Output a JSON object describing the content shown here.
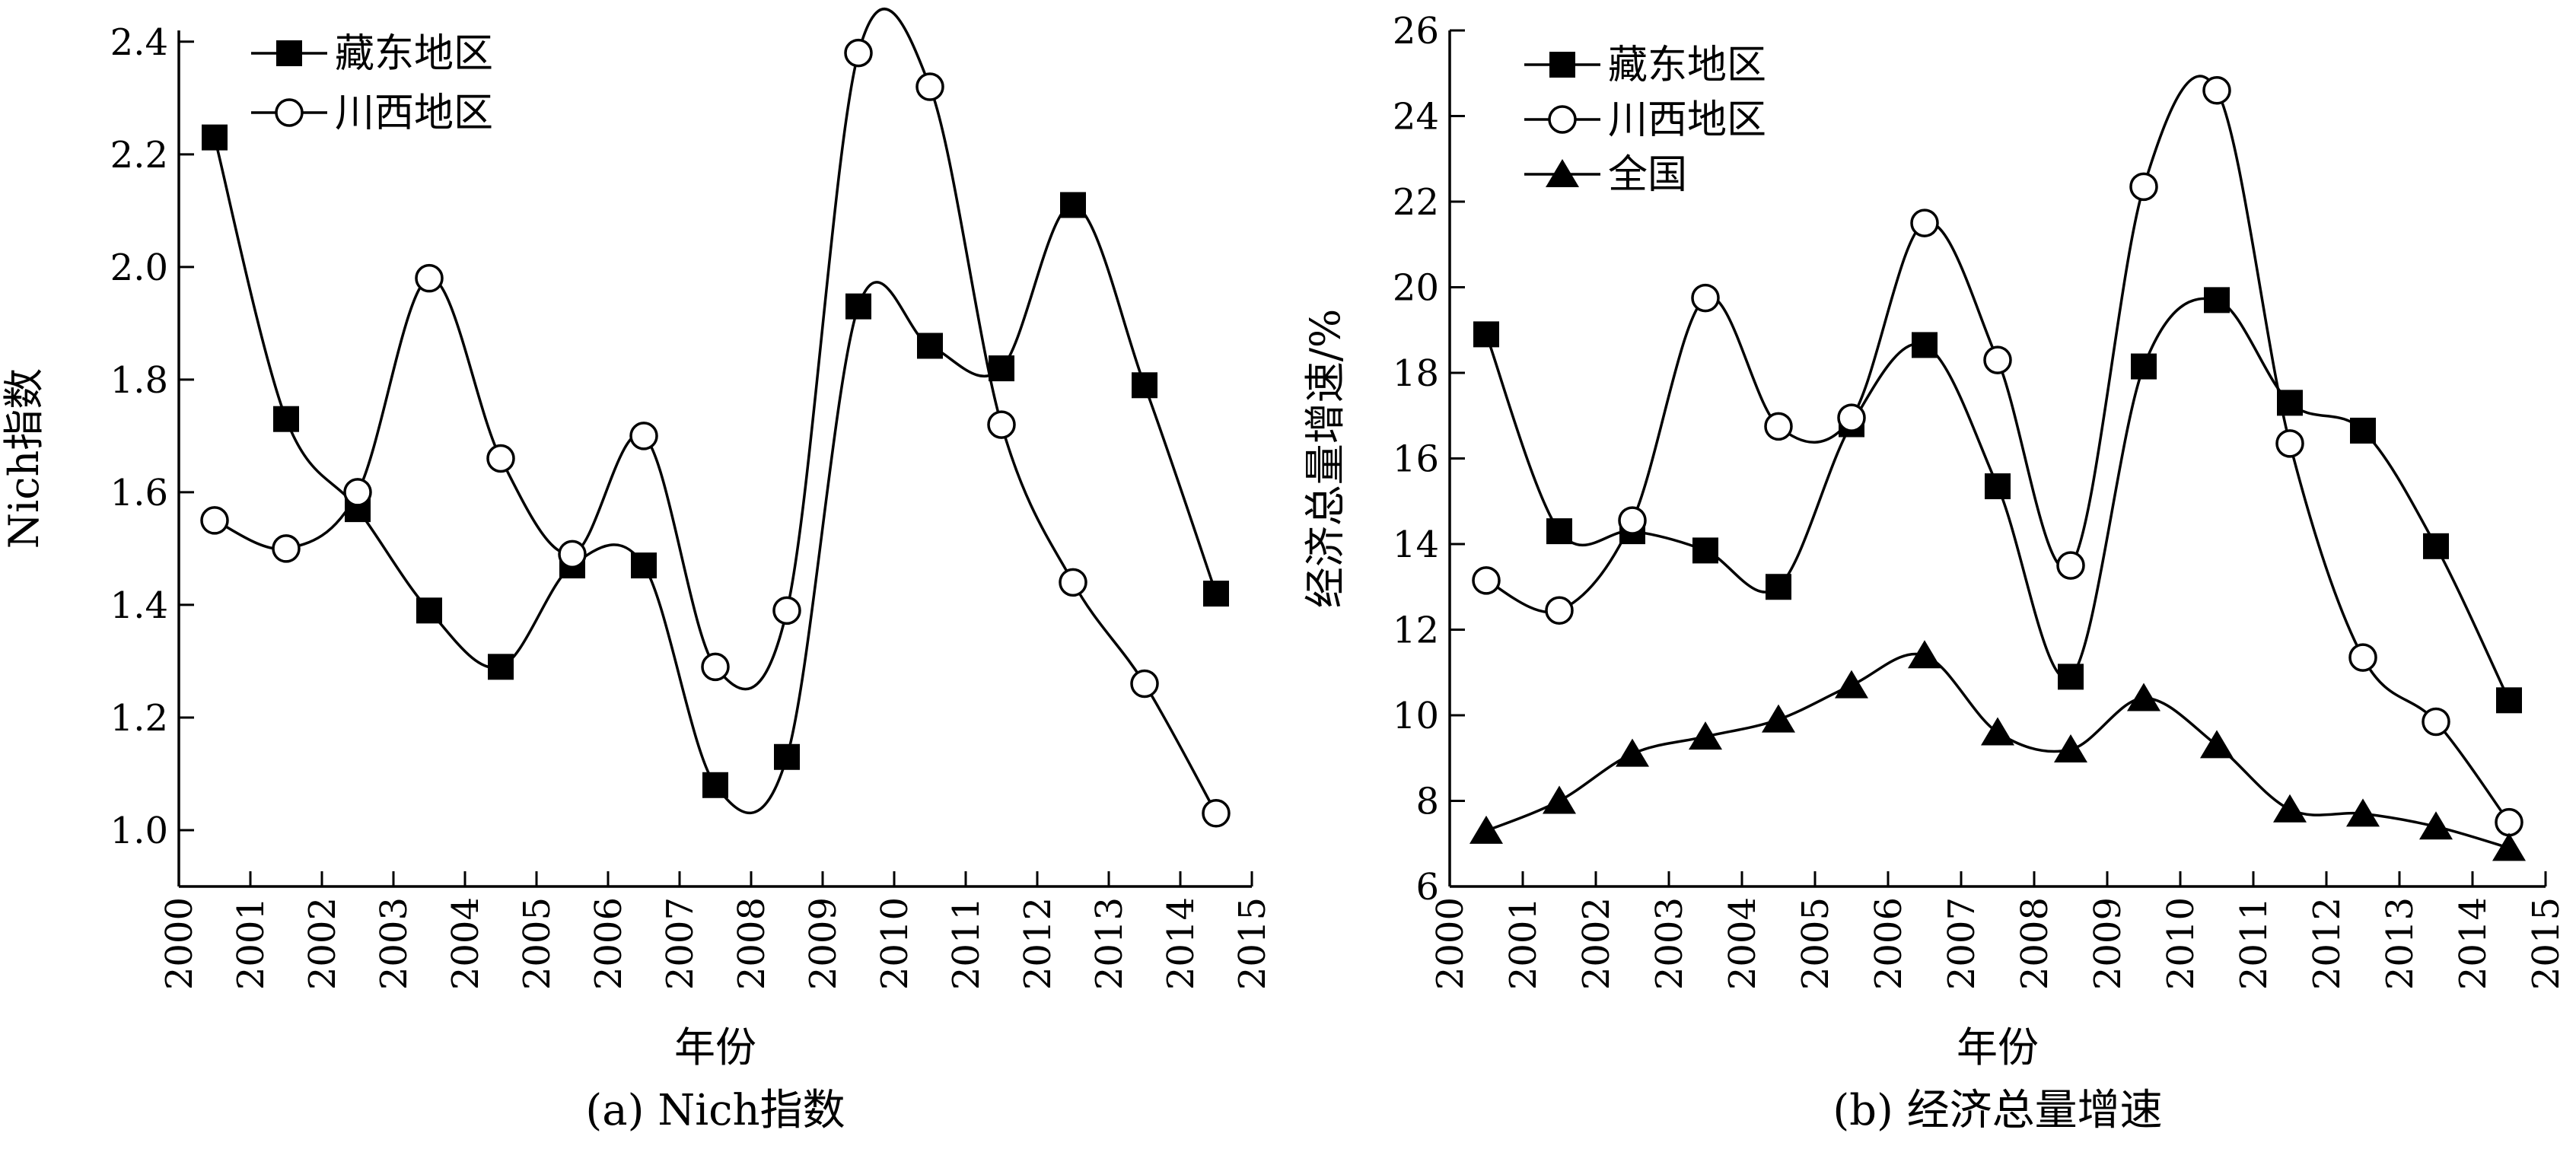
{
  "chart_data": [
    {
      "type": "line",
      "caption": "(a) Nich指数",
      "xlabel": "年份",
      "ylabel": "Nich指数",
      "x_ticks": [
        "2000",
        "2001",
        "2002",
        "2003",
        "2004",
        "2005",
        "2006",
        "2007",
        "2008",
        "2009",
        "2010",
        "2011",
        "2012",
        "2013",
        "2014",
        "2015"
      ],
      "y_ticks": [
        "1.0",
        "1.2",
        "1.4",
        "1.6",
        "1.8",
        "2.0",
        "2.2",
        "2.4"
      ],
      "xlim": [
        2000,
        2015
      ],
      "ylim": [
        0.9,
        2.42
      ],
      "legend_position": "top-left",
      "x": [
        2000.5,
        2001.5,
        2002.5,
        2003.5,
        2004.5,
        2005.5,
        2006.5,
        2007.5,
        2008.5,
        2009.5,
        2010.5,
        2011.5,
        2012.5,
        2013.5,
        2014.5
      ],
      "series": [
        {
          "name": "藏东地区",
          "marker": "square-filled",
          "values": [
            2.23,
            1.73,
            1.57,
            1.39,
            1.29,
            1.47,
            1.47,
            1.08,
            1.13,
            1.93,
            1.86,
            1.82,
            2.11,
            1.79,
            1.42
          ]
        },
        {
          "name": "川西地区",
          "marker": "circle-open",
          "values": [
            1.55,
            1.5,
            1.6,
            1.98,
            1.66,
            1.49,
            1.7,
            1.29,
            1.39,
            2.38,
            2.32,
            1.72,
            1.44,
            1.26,
            1.03
          ]
        }
      ]
    },
    {
      "type": "line",
      "caption": "(b) 经济总量增速",
      "xlabel": "年份",
      "ylabel": "经济总量增速/%",
      "x_ticks": [
        "2000",
        "2001",
        "2002",
        "2003",
        "2004",
        "2005",
        "2006",
        "2007",
        "2008",
        "2009",
        "2010",
        "2011",
        "2012",
        "2013",
        "2014",
        "2015"
      ],
      "y_ticks": [
        "6",
        "8",
        "10",
        "12",
        "14",
        "16",
        "18",
        "20",
        "22",
        "24",
        "26"
      ],
      "xlim": [
        2000,
        2015
      ],
      "ylim": [
        6,
        26
      ],
      "legend_position": "top-left",
      "x": [
        2000.5,
        2001.5,
        2002.5,
        2003.5,
        2004.5,
        2005.5,
        2006.5,
        2007.5,
        2008.5,
        2009.5,
        2010.5,
        2011.5,
        2012.5,
        2013.5,
        2014.5
      ],
      "series": [
        {
          "name": "藏东地区",
          "marker": "square-filled",
          "values": [
            18.9,
            14.3,
            14.3,
            13.85,
            13.0,
            16.8,
            18.65,
            15.35,
            10.9,
            18.15,
            19.7,
            17.3,
            16.65,
            13.95,
            10.35
          ]
        },
        {
          "name": "川西地区",
          "marker": "circle-open",
          "values": [
            13.15,
            12.45,
            14.55,
            19.75,
            16.75,
            16.95,
            21.5,
            18.3,
            13.5,
            22.35,
            24.6,
            16.35,
            11.35,
            9.85,
            7.5
          ]
        },
        {
          "name": "全国",
          "marker": "triangle-filled",
          "values": [
            7.3,
            8.0,
            9.1,
            9.5,
            9.9,
            10.7,
            11.4,
            9.6,
            9.2,
            10.4,
            9.3,
            7.8,
            7.7,
            7.4,
            6.9
          ]
        }
      ]
    }
  ]
}
